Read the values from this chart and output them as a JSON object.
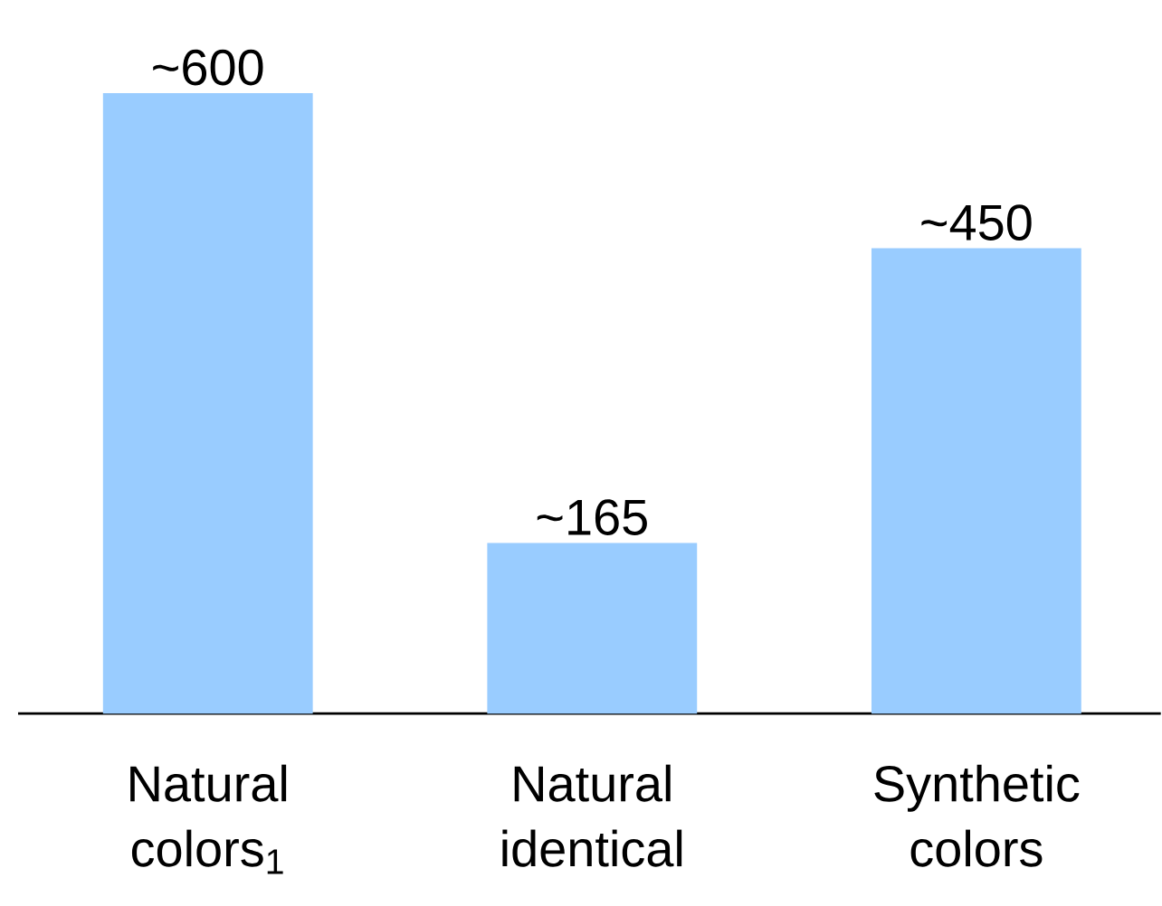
{
  "chart_data": {
    "type": "bar",
    "categories": [
      "Natural colors$_{1}$",
      "Natural identical",
      "Synthetic colors"
    ],
    "values": [
      600,
      165,
      450
    ],
    "value_labels": [
      "~600",
      "~165",
      "~450"
    ],
    "color": "#99ccff"
  }
}
